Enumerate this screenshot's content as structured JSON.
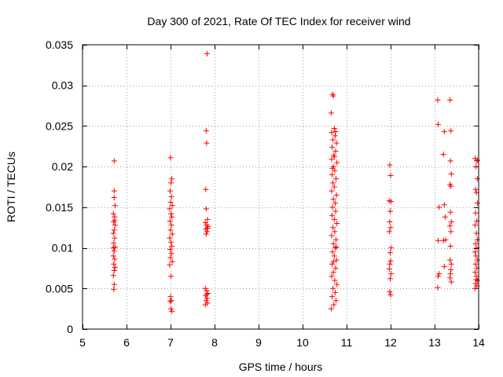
{
  "chart_data": {
    "type": "scatter",
    "title": "Day 300 of 2021, Rate Of TEC Index for receiver wind",
    "xlabel": "GPS time / hours",
    "ylabel": "ROTI / TECUs",
    "xlim": [
      5,
      14
    ],
    "ylim": [
      0,
      0.035
    ],
    "xticks": [
      5,
      6,
      7,
      8,
      9,
      10,
      11,
      12,
      13,
      14
    ],
    "xtick_labels": [
      "5",
      "6",
      "7",
      "8",
      "9",
      "10",
      "11",
      "12",
      "13",
      "14"
    ],
    "yticks": [
      0,
      0.005,
      0.01,
      0.015,
      0.02,
      0.025,
      0.03,
      0.035
    ],
    "ytick_labels": [
      "0",
      "0.005",
      "0.01",
      "0.015",
      "0.02",
      "0.025",
      "0.03",
      "0.035"
    ],
    "grid": true,
    "marker_color": "#ff0000",
    "marker": "+",
    "series": [
      {
        "name": "ROTI",
        "points": [
          [
            5.72,
            0.0207
          ],
          [
            5.72,
            0.017
          ],
          [
            5.72,
            0.0162
          ],
          [
            5.74,
            0.0152
          ],
          [
            5.7,
            0.0142
          ],
          [
            5.73,
            0.0138
          ],
          [
            5.71,
            0.0132
          ],
          [
            5.74,
            0.0128
          ],
          [
            5.72,
            0.0122
          ],
          [
            5.7,
            0.0118
          ],
          [
            5.73,
            0.0112
          ],
          [
            5.71,
            0.0106
          ],
          [
            5.74,
            0.0101
          ],
          [
            5.72,
            0.0096
          ],
          [
            5.7,
            0.009
          ],
          [
            5.73,
            0.0086
          ],
          [
            5.71,
            0.008
          ],
          [
            5.74,
            0.0076
          ],
          [
            5.72,
            0.0072
          ],
          [
            5.7,
            0.0066
          ],
          [
            5.72,
            0.0055
          ],
          [
            5.71,
            0.0049
          ],
          [
            5.73,
            0.0134
          ],
          [
            5.7,
            0.01
          ],
          [
            7.0,
            0.0211
          ],
          [
            7.03,
            0.0185
          ],
          [
            7.01,
            0.018
          ],
          [
            6.99,
            0.017
          ],
          [
            7.02,
            0.0163
          ],
          [
            7.0,
            0.0156
          ],
          [
            7.04,
            0.0152
          ],
          [
            6.98,
            0.0148
          ],
          [
            7.01,
            0.0142
          ],
          [
            7.03,
            0.0138
          ],
          [
            6.99,
            0.0133
          ],
          [
            7.02,
            0.0128
          ],
          [
            7.0,
            0.0122
          ],
          [
            7.04,
            0.0117
          ],
          [
            6.98,
            0.0112
          ],
          [
            7.01,
            0.0107
          ],
          [
            7.03,
            0.0102
          ],
          [
            6.99,
            0.0098
          ],
          [
            7.02,
            0.0093
          ],
          [
            7.0,
            0.0088
          ],
          [
            7.04,
            0.0083
          ],
          [
            6.98,
            0.0079
          ],
          [
            7.01,
            0.0065
          ],
          [
            7.0,
            0.004
          ],
          [
            7.02,
            0.0035
          ],
          [
            7.01,
            0.0025
          ],
          [
            7.03,
            0.0022
          ],
          [
            6.99,
            0.0034
          ],
          [
            7.83,
            0.0339
          ],
          [
            7.81,
            0.0244
          ],
          [
            7.82,
            0.0229
          ],
          [
            7.8,
            0.0172
          ],
          [
            7.81,
            0.0148
          ],
          [
            7.84,
            0.0135
          ],
          [
            7.79,
            0.0131
          ],
          [
            7.82,
            0.0128
          ],
          [
            7.85,
            0.0126
          ],
          [
            7.8,
            0.0123
          ],
          [
            7.83,
            0.012
          ],
          [
            7.81,
            0.0117
          ],
          [
            7.84,
            0.0124
          ],
          [
            7.79,
            0.005
          ],
          [
            7.82,
            0.0047
          ],
          [
            7.85,
            0.0044
          ],
          [
            7.8,
            0.0041
          ],
          [
            7.83,
            0.0038
          ],
          [
            7.81,
            0.0035
          ],
          [
            7.84,
            0.0032
          ],
          [
            7.79,
            0.003
          ],
          [
            7.82,
            0.0043
          ],
          [
            10.65,
            0.0266
          ],
          [
            10.68,
            0.0289
          ],
          [
            10.7,
            0.0287
          ],
          [
            10.72,
            0.0247
          ],
          [
            10.66,
            0.0242
          ],
          [
            10.74,
            0.0238
          ],
          [
            10.69,
            0.0233
          ],
          [
            10.77,
            0.0229
          ],
          [
            10.67,
            0.0224
          ],
          [
            10.75,
            0.0219
          ],
          [
            10.71,
            0.0214
          ],
          [
            10.66,
            0.0209
          ],
          [
            10.78,
            0.0205
          ],
          [
            10.7,
            0.02
          ],
          [
            10.73,
            0.0195
          ],
          [
            10.67,
            0.019
          ],
          [
            10.76,
            0.0185
          ],
          [
            10.69,
            0.018
          ],
          [
            10.72,
            0.0175
          ],
          [
            10.66,
            0.017
          ],
          [
            10.77,
            0.0165
          ],
          [
            10.7,
            0.016
          ],
          [
            10.74,
            0.0155
          ],
          [
            10.68,
            0.015
          ],
          [
            10.75,
            0.0145
          ],
          [
            10.67,
            0.014
          ],
          [
            10.72,
            0.0135
          ],
          [
            10.78,
            0.013
          ],
          [
            10.69,
            0.0125
          ],
          [
            10.73,
            0.012
          ],
          [
            10.66,
            0.0115
          ],
          [
            10.76,
            0.011
          ],
          [
            10.7,
            0.0105
          ],
          [
            10.74,
            0.01
          ],
          [
            10.68,
            0.0095
          ],
          [
            10.72,
            0.009
          ],
          [
            10.77,
            0.0085
          ],
          [
            10.67,
            0.008
          ],
          [
            10.75,
            0.0075
          ],
          [
            10.7,
            0.007
          ],
          [
            10.66,
            0.0065
          ],
          [
            10.73,
            0.006
          ],
          [
            10.78,
            0.0055
          ],
          [
            10.69,
            0.005
          ],
          [
            10.74,
            0.0045
          ],
          [
            10.67,
            0.004
          ],
          [
            10.76,
            0.0035
          ],
          [
            10.71,
            0.003
          ],
          [
            10.65,
            0.0025
          ],
          [
            10.72,
            0.0212
          ],
          [
            10.75,
            0.0243
          ],
          [
            10.68,
            0.0198
          ],
          [
            10.77,
            0.0101
          ],
          [
            10.7,
            0.0083
          ],
          [
            11.98,
            0.0202
          ],
          [
            12.0,
            0.0189
          ],
          [
            11.97,
            0.0158
          ],
          [
            12.01,
            0.0157
          ],
          [
            11.99,
            0.0145
          ],
          [
            11.98,
            0.0132
          ],
          [
            12.0,
            0.0125
          ],
          [
            11.97,
            0.012
          ],
          [
            12.01,
            0.01
          ],
          [
            11.99,
            0.0094
          ],
          [
            12.0,
            0.0084
          ],
          [
            11.98,
            0.008
          ],
          [
            11.97,
            0.0074
          ],
          [
            12.01,
            0.0068
          ],
          [
            11.99,
            0.0062
          ],
          [
            11.98,
            0.0046
          ],
          [
            12.0,
            0.0042
          ],
          [
            13.07,
            0.0282
          ],
          [
            13.08,
            0.0252
          ],
          [
            13.22,
            0.0243
          ],
          [
            13.37,
            0.0244
          ],
          [
            13.35,
            0.0282
          ],
          [
            13.2,
            0.0215
          ],
          [
            13.36,
            0.0207
          ],
          [
            13.38,
            0.0191
          ],
          [
            13.35,
            0.0178
          ],
          [
            13.37,
            0.0176
          ],
          [
            13.22,
            0.0153
          ],
          [
            13.1,
            0.015
          ],
          [
            13.36,
            0.0144
          ],
          [
            13.24,
            0.0138
          ],
          [
            13.38,
            0.0132
          ],
          [
            13.35,
            0.0127
          ],
          [
            13.37,
            0.012
          ],
          [
            13.08,
            0.0109
          ],
          [
            13.2,
            0.0109
          ],
          [
            13.36,
            0.0102
          ],
          [
            13.35,
            0.0085
          ],
          [
            13.38,
            0.008
          ],
          [
            13.22,
            0.0077
          ],
          [
            13.37,
            0.0073
          ],
          [
            13.36,
            0.0068
          ],
          [
            13.1,
            0.0068
          ],
          [
            13.35,
            0.0063
          ],
          [
            13.08,
            0.0065
          ],
          [
            13.38,
            0.0058
          ],
          [
            13.07,
            0.0051
          ],
          [
            13.25,
            0.011
          ],
          [
            13.92,
            0.021
          ],
          [
            13.96,
            0.0207
          ],
          [
            13.94,
            0.02
          ],
          [
            13.97,
            0.0185
          ],
          [
            13.93,
            0.0172
          ],
          [
            13.95,
            0.0168
          ],
          [
            13.97,
            0.0155
          ],
          [
            13.93,
            0.0143
          ],
          [
            13.96,
            0.0133
          ],
          [
            13.92,
            0.0128
          ],
          [
            13.95,
            0.0118
          ],
          [
            13.97,
            0.011
          ],
          [
            13.93,
            0.0105
          ],
          [
            13.96,
            0.01
          ],
          [
            13.92,
            0.0095
          ],
          [
            13.94,
            0.009
          ],
          [
            13.97,
            0.0085
          ],
          [
            13.93,
            0.008
          ],
          [
            13.96,
            0.0075
          ],
          [
            13.92,
            0.007
          ],
          [
            13.95,
            0.0065
          ],
          [
            13.97,
            0.006
          ],
          [
            13.93,
            0.0056
          ],
          [
            13.96,
            0.0053
          ],
          [
            13.92,
            0.005
          ],
          [
            13.95,
            0.0061
          ],
          [
            13.97,
            0.0208
          ]
        ]
      }
    ]
  }
}
